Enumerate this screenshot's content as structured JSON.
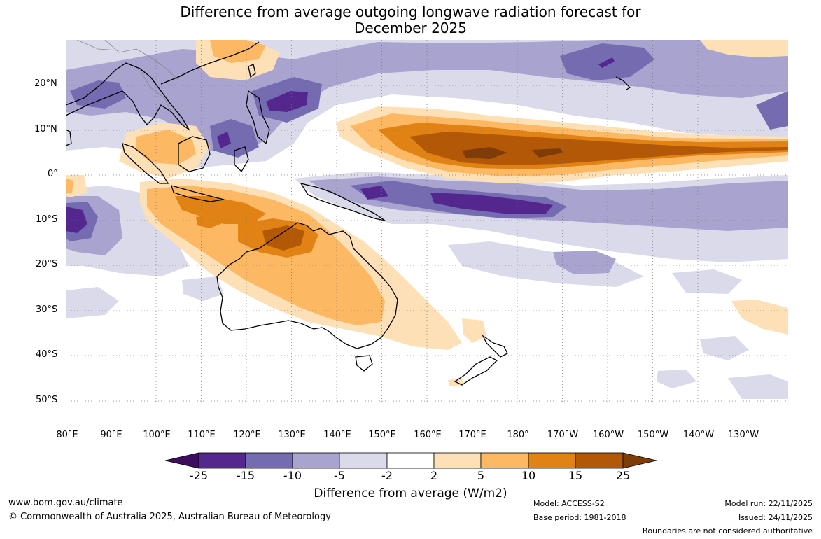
{
  "title": {
    "line1": "Difference from average outgoing longwave radiation forecast for",
    "line2": "December 2025"
  },
  "axes": {
    "latitudes": [
      "20°N",
      "10°N",
      "0°",
      "10°S",
      "20°S",
      "30°S",
      "40°S",
      "50°S"
    ],
    "longitudes": [
      "80°E",
      "90°E",
      "100°E",
      "110°E",
      "120°E",
      "130°E",
      "140°E",
      "150°E",
      "160°E",
      "170°E",
      "180°",
      "170°W",
      "160°W",
      "150°W",
      "140°W",
      "130°W"
    ]
  },
  "colorbar": {
    "labels": [
      "-25",
      "-15",
      "-10",
      "-5",
      "-2",
      "2",
      "5",
      "10",
      "15",
      "25"
    ],
    "colors": [
      "#3f0d60",
      "#54278f",
      "#756bb1",
      "#a9a3cf",
      "#dadaeb",
      "#ffffff",
      "#fee0b6",
      "#fdb863",
      "#e08214",
      "#b35806",
      "#7f3b08"
    ],
    "title": "Difference from average (W/m2)"
  },
  "footer": {
    "website": "www.bom.gov.au/climate",
    "copyright": "© Commonwealth of Australia 2025, Australian Bureau of Meteorology",
    "model": "Model: ACCESS-S2",
    "base_period": "Base period: 1981-2018",
    "model_run": "Model run: 22/11/2025",
    "issued": "Issued: 24/11/2025",
    "disclaimer": "Boundaries are not considered authoritative"
  }
}
